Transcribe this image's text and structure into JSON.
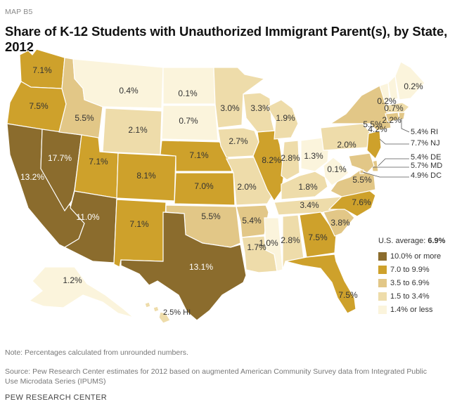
{
  "header": {
    "map_tag": "MAP B5",
    "title": "Share of K-12 Students with Unauthorized Immigrant Parent(s), by State, 2012"
  },
  "colors": {
    "bin_1": "#fbf4dc",
    "bin_2": "#eedcaa",
    "bin_3": "#e2c787",
    "bin_4": "#cea12b",
    "bin_5": "#8b6c2d",
    "outline": "#ffffff"
  },
  "states": [
    {
      "id": "WA",
      "value": "7.1%",
      "bin": 4
    },
    {
      "id": "OR",
      "value": "7.5%",
      "bin": 4
    },
    {
      "id": "CA",
      "value": "13.2%",
      "bin": 5
    },
    {
      "id": "NV",
      "value": "17.7%",
      "bin": 5
    },
    {
      "id": "ID",
      "value": "5.5%",
      "bin": 3
    },
    {
      "id": "MT",
      "value": "0.4%",
      "bin": 1
    },
    {
      "id": "WY",
      "value": "2.1%",
      "bin": 2
    },
    {
      "id": "UT",
      "value": "7.1%",
      "bin": 4
    },
    {
      "id": "AZ",
      "value": "11.0%",
      "bin": 5
    },
    {
      "id": "CO",
      "value": "8.1%",
      "bin": 4
    },
    {
      "id": "NM",
      "value": "7.1%",
      "bin": 4
    },
    {
      "id": "ND",
      "value": "0.1%",
      "bin": 1
    },
    {
      "id": "SD",
      "value": "0.7%",
      "bin": 1
    },
    {
      "id": "NE",
      "value": "7.1%",
      "bin": 4
    },
    {
      "id": "KS",
      "value": "7.0%",
      "bin": 4
    },
    {
      "id": "OK",
      "value": "5.5%",
      "bin": 3
    },
    {
      "id": "TX",
      "value": "13.1%",
      "bin": 5
    },
    {
      "id": "MN",
      "value": "3.0%",
      "bin": 2
    },
    {
      "id": "IA",
      "value": "2.7%",
      "bin": 2
    },
    {
      "id": "MO",
      "value": "2.0%",
      "bin": 2
    },
    {
      "id": "AR",
      "value": "5.4%",
      "bin": 3
    },
    {
      "id": "LA",
      "value": "1.7%",
      "bin": 2
    },
    {
      "id": "WI",
      "value": "3.3%",
      "bin": 2
    },
    {
      "id": "IL",
      "value": "8.2%",
      "bin": 4
    },
    {
      "id": "MI",
      "value": "1.9%",
      "bin": 2
    },
    {
      "id": "IN",
      "value": "2.8%",
      "bin": 2
    },
    {
      "id": "OH",
      "value": "1.3%",
      "bin": 1
    },
    {
      "id": "KY",
      "value": "1.8%",
      "bin": 2
    },
    {
      "id": "TN",
      "value": "3.4%",
      "bin": 2
    },
    {
      "id": "MS",
      "value": "1.0%",
      "bin": 1
    },
    {
      "id": "AL",
      "value": "2.8%",
      "bin": 2
    },
    {
      "id": "GA",
      "value": "7.5%",
      "bin": 4
    },
    {
      "id": "FL",
      "value": "7.5%",
      "bin": 4
    },
    {
      "id": "SC",
      "value": "3.8%",
      "bin": 3
    },
    {
      "id": "NC",
      "value": "7.6%",
      "bin": 4
    },
    {
      "id": "VA",
      "value": "5.5%",
      "bin": 3
    },
    {
      "id": "WV",
      "value": "0.1%",
      "bin": 1
    },
    {
      "id": "PA",
      "value": "2.0%",
      "bin": 2
    },
    {
      "id": "NY",
      "value": "5.5%",
      "bin": 3
    },
    {
      "id": "VT",
      "value": "0.2%",
      "bin": 1
    },
    {
      "id": "NH",
      "value": "0.7%",
      "bin": 1
    },
    {
      "id": "ME",
      "value": "0.2%",
      "bin": 1
    },
    {
      "id": "MA",
      "value": "2.2%",
      "bin": 2
    },
    {
      "id": "CT",
      "value": "4.2%",
      "bin": 3
    },
    {
      "id": "NJ",
      "value": "7.7%",
      "bin": 4
    },
    {
      "id": "RI",
      "value": "5.4%",
      "bin": 3
    },
    {
      "id": "DE",
      "value": "5.4%",
      "bin": 3
    },
    {
      "id": "MD",
      "value": "5.7%",
      "bin": 3
    },
    {
      "id": "DC",
      "value": "4.9%",
      "bin": 3
    },
    {
      "id": "AK",
      "value": "1.2%",
      "bin": 1
    },
    {
      "id": "HI",
      "value": "2.5%",
      "bin": 2
    }
  ],
  "callouts": {
    "RI": "5.4% RI",
    "NJ": "7.7% NJ",
    "DE": "5.4% DE",
    "MD": "5.7% MD",
    "DC": "4.9% DC",
    "HI": "2.5% HI"
  },
  "legend": {
    "average_label": "U.S. average:",
    "average_value": "6.9%",
    "items": [
      {
        "label": "10.0% or more",
        "bin": 5
      },
      {
        "label": "7.0 to 9.9%",
        "bin": 4
      },
      {
        "label": "3.5 to 6.9%",
        "bin": 3
      },
      {
        "label": "1.5 to 3.4%",
        "bin": 2
      },
      {
        "label": "1.4% or less",
        "bin": 1
      }
    ]
  },
  "footer": {
    "note": "Note: Percentages calculated from unrounded numbers.",
    "source": "Source: Pew Research Center estimates for 2012 based on augmented American Community Survey data from Integrated Public Use Microdata Series (IPUMS)",
    "brand": "PEW RESEARCH CENTER"
  }
}
